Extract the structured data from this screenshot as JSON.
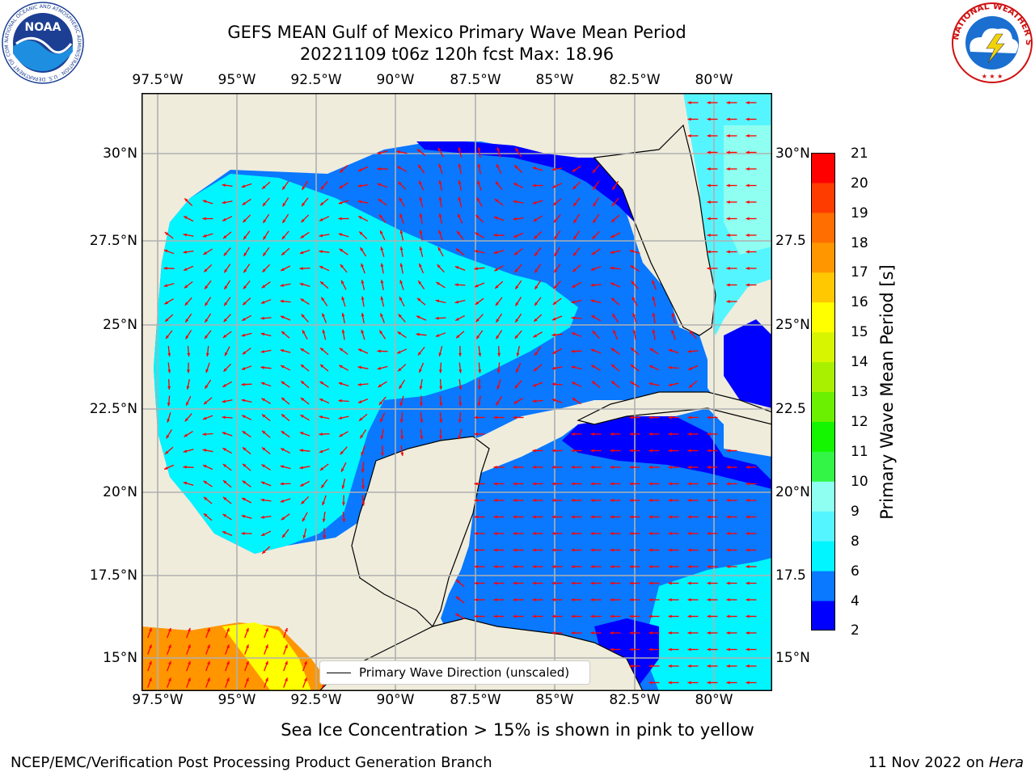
{
  "title": {
    "line1": "GEFS MEAN Gulf of Mexico Primary Wave Mean Period",
    "line2": "20221109 t06z 120h fcst   Max: 18.96"
  },
  "logos": {
    "noaa_text": "NOAA",
    "noaa_ring": "NATIONAL OCEANIC AND ATMOSPHERIC ADMINISTRATION · U.S. DEPARTMENT OF COMMERCE",
    "nws_ring": "NATIONAL WEATHER SERVICE"
  },
  "map": {
    "lon_labels": [
      "97.5°W",
      "95°W",
      "92.5°W",
      "90°W",
      "87.5°W",
      "85°W",
      "82.5°W",
      "80°W"
    ],
    "lat_labels_left": [
      "30°N",
      "27.5°N",
      "25°N",
      "22.5°N",
      "20°N",
      "17.5°N",
      "15°N"
    ],
    "lat_labels_right": [
      "30°N",
      "27.5",
      "25°N",
      "22.5",
      "20°N",
      "17.5",
      "15°N"
    ],
    "legend_label": "Primary Wave Direction (unscaled)",
    "vector_color": "#ff0000",
    "land_color": "#efecdc"
  },
  "colorbar": {
    "label": "Primary Wave Mean Period [s]",
    "ticks": [
      "21",
      "20",
      "19",
      "18",
      "17",
      "16",
      "15",
      "14",
      "13",
      "12",
      "11",
      "10",
      "9",
      "8",
      "6",
      "4",
      "2"
    ],
    "colors": [
      "#0000ff",
      "#0a78ff",
      "#00f5ff",
      "#55f5ff",
      "#8efff0",
      "#32f545",
      "#14f500",
      "#6af000",
      "#a8f000",
      "#d8f500",
      "#ffff00",
      "#ffc800",
      "#ff9600",
      "#ff6e00",
      "#ff3c00",
      "#ff0000"
    ]
  },
  "footer": {
    "note": "Sea Ice Concentration > 15% is shown in pink to yellow",
    "left": "NCEP/EMC/Verification Post Processing Product Generation Branch",
    "right_date": "11 Nov 2022 on ",
    "right_host": "Hera"
  }
}
